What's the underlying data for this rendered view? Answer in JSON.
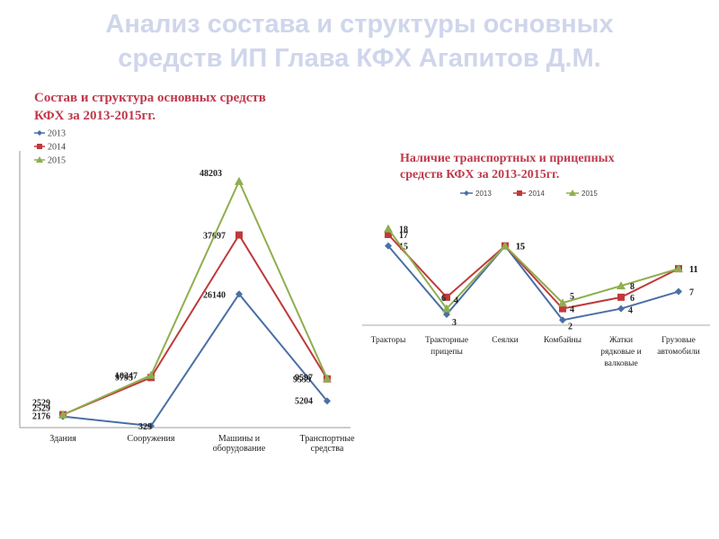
{
  "slide": {
    "title_line1": "Анализ состава и структуры основных",
    "title_line2": "средств ИП Глава КФХ Агапитов Д.М."
  },
  "chart_data": [
    {
      "type": "line",
      "title_line1": "Состав  и структура основных средств",
      "title_line2": "КФХ  за 2013-2015гг.",
      "categories": [
        [
          "Здания"
        ],
        [
          "Сооружения"
        ],
        [
          "Машины и",
          "оборудование"
        ],
        [
          "Транспортные",
          "средства"
        ]
      ],
      "series": [
        {
          "name": "2013",
          "values": [
            2176,
            329,
            26140,
            5204
          ],
          "color": "#4a6fa5",
          "marker": "diamond"
        },
        {
          "name": "2014",
          "values": [
            2529,
            9795,
            37697,
            9539
          ],
          "color": "#c0393b",
          "marker": "square"
        },
        {
          "name": "2015",
          "values": [
            2529,
            10247,
            48203,
            9597
          ],
          "color": "#8fae4e",
          "marker": "triangle"
        }
      ],
      "ylim": [
        0,
        50000
      ],
      "legend": "top-left"
    },
    {
      "type": "line",
      "title_line1": "Наличие транспортных и прицепных",
      "title_line2": "средств КФХ за 2013-2015гг.",
      "categories": [
        [
          "Тракторы"
        ],
        [
          "Тракторные",
          "прицепы"
        ],
        [
          "Сеялки"
        ],
        [
          "Комбайны"
        ],
        [
          "Жатки",
          "рядковые и",
          "валковые"
        ],
        [
          "Грузовые",
          "автомобили"
        ]
      ],
      "series": [
        {
          "name": "2013",
          "values": [
            15,
            3,
            15,
            2,
            4,
            7
          ],
          "color": "#4a6fa5",
          "marker": "diamond"
        },
        {
          "name": "2014",
          "values": [
            17,
            6,
            15,
            4,
            6,
            11
          ],
          "color": "#c0393b",
          "marker": "square"
        },
        {
          "name": "2015",
          "values": [
            18,
            4,
            15,
            5,
            8,
            11
          ],
          "color": "#8fae4e",
          "marker": "triangle"
        }
      ],
      "legend": "top"
    }
  ]
}
